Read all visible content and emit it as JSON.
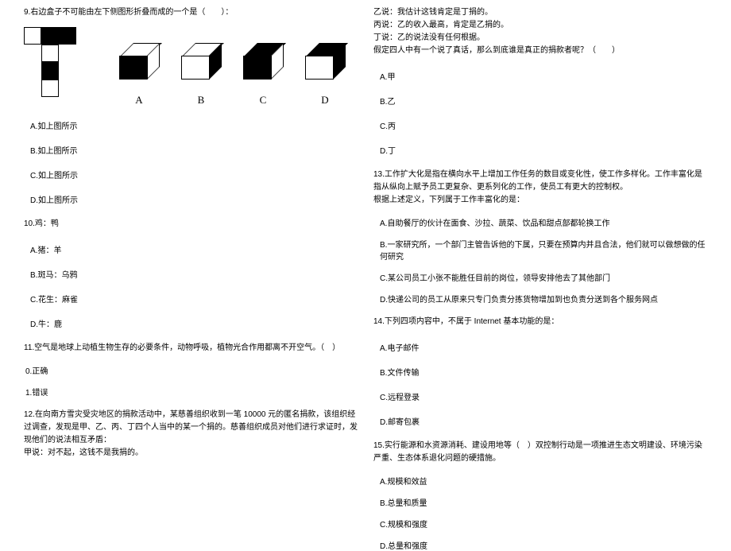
{
  "colors": {
    "black": "#000000",
    "white": "#ffffff"
  },
  "fontsize": {
    "body": 10,
    "label": 13
  },
  "left": {
    "q9": {
      "text": "9.右边盒子不可能由左下侧图形折叠而成的一个是（　　）：",
      "net": {
        "cells": [
          {
            "row": 0,
            "col": 0,
            "color": "white"
          },
          {
            "row": 0,
            "col": 1,
            "color": "black"
          },
          {
            "row": 0,
            "col": 2,
            "color": "black"
          },
          {
            "row": 1,
            "col": 1,
            "color": "white"
          },
          {
            "row": 2,
            "col": 1,
            "color": "black"
          },
          {
            "row": 3,
            "col": 1,
            "color": "white"
          }
        ]
      },
      "cubes": [
        {
          "label": "A",
          "top": "white",
          "front": "black",
          "right": "white"
        },
        {
          "label": "B",
          "top": "white",
          "front": "white",
          "right": "black"
        },
        {
          "label": "C",
          "top": "black",
          "front": "black",
          "right": "white"
        },
        {
          "label": "D",
          "top": "black",
          "front": "white",
          "right": "black"
        }
      ],
      "options": [
        "A.如上图所示",
        "B.如上图所示",
        "C.如上图所示",
        "D.如上图所示"
      ]
    },
    "q10": {
      "text": "10.鸡：鸭",
      "options": [
        "A.猪：羊",
        "B.斑马：乌鸦",
        "C.花生：麻雀",
        "D.牛：鹿"
      ]
    },
    "q11": {
      "text": "11.空气是地球上动植生物生存的必要条件，动物呼吸，植物光合作用都离不开空气。（　）",
      "options": [
        "0.正确",
        "1.错误"
      ]
    },
    "q12": {
      "text": "12.在向南方雪灾受灾地区的捐款活动中，某慈善组织收到一笔 10000 元的匿名捐款，该组织经过调查，发现是甲、乙、丙、丁四个人当中的某一个捐的。慈善组织成员对他们进行求证时，发现他们的说法相互矛盾：",
      "line2": "甲说：对不起，这钱不是我捐的。"
    }
  },
  "right": {
    "q12cont": {
      "lines": [
        "乙说：我估计这钱肯定是丁捐的。",
        "丙说：乙的收入最高，肯定是乙捐的。",
        "丁说：乙的说法没有任何根据。",
        "假定四人中有一个说了真话，那么到底谁是真正的捐款者呢？（　　）"
      ],
      "options": [
        "A.甲",
        "B.乙",
        "C.丙",
        "D.丁"
      ]
    },
    "q13": {
      "text": "13.工作扩大化是指在横向水平上增加工作任务的数目或变化性，使工作多样化。工作丰富化是指从纵向上赋予员工更复杂、更系列化的工作，使员工有更大的控制权。",
      "sub": "根据上述定义，下列属于工作丰富化的是：",
      "options": [
        "A.自助餐厅的伙计在面食、沙拉、蔬菜、饮品和甜点部都轮换工作",
        "B.一家研究所，一个部门主管告诉他的下属，只要在预算内并且合法，他们就可以做想做的任何研究",
        "C.某公司员工小张不能胜任目前的岗位，领导安排他去了其他部门",
        "D.快递公司的员工从原来只专门负责分拣货物增加到也负责分送到各个服务网点"
      ]
    },
    "q14": {
      "text": "14.下列四项内容中，不属于 Internet 基本功能的是：",
      "options": [
        "A.电子邮件",
        "B.文件传输",
        "C.远程登录",
        "D.邮寄包裹"
      ]
    },
    "q15": {
      "text": "15.实行能源和水资源消耗、建设用地等（　）双控制行动是一项推进生态文明建设、环境污染严重、生态体系退化问题的硬措施。",
      "options": [
        "A.规模和效益",
        "B.总量和质量",
        "C.规模和强度",
        "D.总量和强度"
      ]
    }
  }
}
